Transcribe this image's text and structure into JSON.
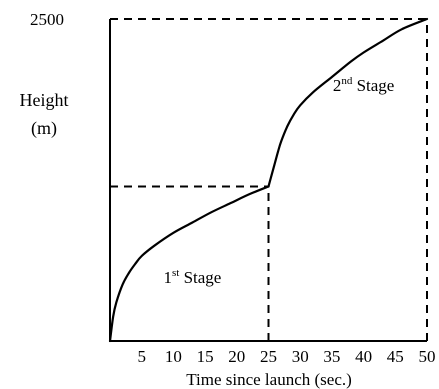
{
  "chart_data": {
    "type": "line",
    "xlabel": "Time since launch (sec.)",
    "ylabel_line1": "Height",
    "ylabel_line2": "(m)",
    "x_ticks": [
      5,
      10,
      15,
      20,
      25,
      30,
      35,
      40,
      45,
      50
    ],
    "y_ticks": [
      2500
    ],
    "xlim": [
      0,
      50
    ],
    "ylim": [
      0,
      2500
    ],
    "grid": false,
    "series": [
      {
        "x": [
          0,
          0.5,
          1,
          2,
          3,
          4,
          5,
          7,
          10,
          13,
          16,
          19,
          22,
          25
        ],
        "y": [
          0,
          190,
          300,
          440,
          530,
          600,
          660,
          740,
          840,
          920,
          1000,
          1070,
          1140,
          1200
        ]
      },
      {
        "x": [
          25,
          25.5,
          26,
          26.5,
          27,
          28,
          29,
          30,
          32,
          35,
          38,
          40,
          43,
          46,
          50
        ],
        "y": [
          1200,
          1290,
          1380,
          1470,
          1550,
          1670,
          1760,
          1830,
          1930,
          2050,
          2170,
          2240,
          2330,
          2420,
          2500
        ]
      }
    ],
    "annotations": [
      {
        "main": "1",
        "sup": "st",
        "rest": " Stage",
        "x": 13,
        "y": 450
      },
      {
        "main": "2",
        "sup": "nd",
        "rest": " Stage",
        "x": 40,
        "y": 1940
      }
    ],
    "reference_lines": [
      {
        "kind": "horizontal",
        "y": 1200,
        "x_from": 0,
        "x_to": 25
      },
      {
        "kind": "vertical",
        "x": 25,
        "y_from": 0,
        "y_to": 1200
      },
      {
        "kind": "horizontal",
        "y": 2500,
        "x_from": 0,
        "x_to": 50
      },
      {
        "kind": "vertical",
        "x": 50,
        "y_from": 0,
        "y_to": 2500
      }
    ]
  }
}
